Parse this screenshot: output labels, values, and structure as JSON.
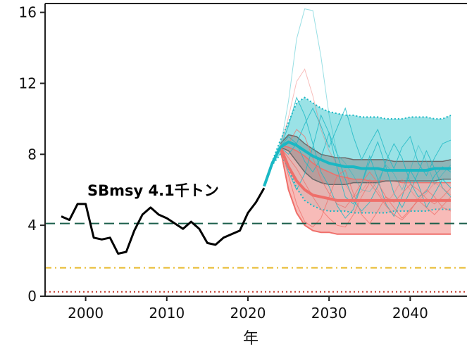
{
  "chart_data": {
    "type": "line",
    "title": "",
    "xlabel": "年",
    "ylabel": "",
    "xlim": [
      1995,
      2047
    ],
    "ylim": [
      0,
      16.5
    ],
    "x_ticks": [
      2000,
      2010,
      2020,
      2030,
      2040
    ],
    "y_ticks": [
      0,
      4,
      8,
      12,
      16
    ],
    "grid": false,
    "annotation": "SBmsy 4.1千トン",
    "colors": {
      "observed": "#000000",
      "teal": "#1ab8c4",
      "teal_fill": "#8fdfe3",
      "salmon": "#ef6f6a",
      "salmon_fill": "#f6aaa6",
      "gray": "#808080",
      "sbmsy_line": "#1a5e4a",
      "limit_line": "#e8b92c",
      "ban_line": "#c43a2b"
    },
    "observed": {
      "x": [
        1997,
        1998,
        1999,
        2000,
        2001,
        2002,
        2003,
        2004,
        2005,
        2006,
        2007,
        2008,
        2009,
        2010,
        2011,
        2012,
        2013,
        2014,
        2015,
        2016,
        2017,
        2018,
        2019,
        2020,
        2021,
        2022
      ],
      "y": [
        4.5,
        4.3,
        5.2,
        5.2,
        3.3,
        3.2,
        3.3,
        2.4,
        2.5,
        3.7,
        4.6,
        5.0,
        4.6,
        4.4,
        4.1,
        3.8,
        4.2,
        3.8,
        3.0,
        2.9,
        3.3,
        3.5,
        3.7,
        4.7,
        5.3,
        6.1
      ]
    },
    "reference_lines": [
      {
        "value": 4.1,
        "style": "dashed",
        "color": "#1a5e4a"
      },
      {
        "value": 1.6,
        "style": "dashdot",
        "color": "#e8b92c"
      },
      {
        "value": 0.25,
        "style": "dotted",
        "color": "#c43a2b"
      }
    ],
    "projection_teal": {
      "x": [
        2022,
        2023,
        2024,
        2025,
        2026,
        2027,
        2028,
        2029,
        2030,
        2031,
        2032,
        2033,
        2034,
        2035,
        2036,
        2037,
        2038,
        2039,
        2040,
        2041,
        2042,
        2043,
        2044,
        2045
      ],
      "median": [
        6.2,
        7.5,
        8.4,
        8.7,
        8.5,
        8.2,
        7.9,
        7.7,
        7.5,
        7.4,
        7.3,
        7.3,
        7.2,
        7.2,
        7.2,
        7.1,
        7.1,
        7.1,
        7.1,
        7.1,
        7.1,
        7.2,
        7.2,
        7.2
      ],
      "upper": [
        6.2,
        7.6,
        8.8,
        9.8,
        10.9,
        11.2,
        10.9,
        10.6,
        10.4,
        10.3,
        10.2,
        10.2,
        10.1,
        10.1,
        10.1,
        10.0,
        10.0,
        10.0,
        10.1,
        10.1,
        10.1,
        10.0,
        10.0,
        10.2
      ],
      "lower": [
        6.2,
        7.4,
        8.0,
        7.2,
        6.1,
        5.4,
        5.1,
        4.9,
        4.8,
        4.8,
        4.8,
        4.7,
        4.7,
        4.7,
        4.7,
        4.7,
        4.8,
        4.8,
        4.8,
        4.8,
        4.8,
        4.9,
        4.9,
        4.9
      ]
    },
    "projection_salmon": {
      "x": [
        2024,
        2025,
        2026,
        2027,
        2028,
        2029,
        2030,
        2031,
        2032,
        2033,
        2034,
        2035,
        2036,
        2037,
        2038,
        2039,
        2040,
        2041,
        2042,
        2043,
        2044,
        2045
      ],
      "median": [
        8.4,
        7.3,
        6.5,
        6.0,
        5.7,
        5.6,
        5.5,
        5.4,
        5.4,
        5.4,
        5.4,
        5.4,
        5.4,
        5.4,
        5.4,
        5.4,
        5.4,
        5.4,
        5.4,
        5.4,
        5.4,
        5.4
      ],
      "upper": [
        8.5,
        8.4,
        8.2,
        7.9,
        7.5,
        7.2,
        7.0,
        6.8,
        6.7,
        6.6,
        6.6,
        6.5,
        6.5,
        6.5,
        6.5,
        6.4,
        6.4,
        6.4,
        6.4,
        6.4,
        6.4,
        6.4
      ],
      "lower": [
        8.3,
        6.0,
        4.7,
        4.0,
        3.7,
        3.6,
        3.6,
        3.5,
        3.5,
        3.5,
        3.5,
        3.5,
        3.5,
        3.5,
        3.5,
        3.5,
        3.5,
        3.5,
        3.5,
        3.5,
        3.5,
        3.5
      ]
    },
    "projection_gray": {
      "x": [
        2024,
        2025,
        2026,
        2027,
        2028,
        2029,
        2030,
        2031,
        2032,
        2033,
        2034,
        2035,
        2036,
        2037,
        2038,
        2039,
        2040,
        2041,
        2042,
        2043,
        2044,
        2045
      ],
      "upper": [
        8.6,
        9.1,
        9.0,
        8.6,
        8.3,
        8.0,
        7.9,
        7.8,
        7.8,
        7.7,
        7.7,
        7.7,
        7.7,
        7.7,
        7.6,
        7.6,
        7.6,
        7.6,
        7.6,
        7.6,
        7.6,
        7.7
      ],
      "lower": [
        8.4,
        8.2,
        7.6,
        7.0,
        6.6,
        6.4,
        6.3,
        6.3,
        6.3,
        6.4,
        6.4,
        6.4,
        6.4,
        6.5,
        6.5,
        6.5,
        6.5,
        6.5,
        6.5,
        6.5,
        6.6,
        6.6
      ]
    },
    "sample_runs_teal": [
      {
        "x": [
          2024,
          2025,
          2026,
          2027,
          2028,
          2029,
          2030,
          2031,
          2032,
          2033,
          2034,
          2035,
          2036,
          2037,
          2038,
          2039,
          2040,
          2041,
          2042,
          2043,
          2044,
          2045
        ],
        "y": [
          8.4,
          11.0,
          14.5,
          16.2,
          16.1,
          13.5,
          10.2,
          8.0,
          7.5,
          6.8,
          6.0,
          5.9,
          6.5,
          7.4,
          6.9,
          6.0,
          7.1,
          8.5,
          7.6,
          6.3,
          6.9,
          7.4
        ]
      },
      {
        "x": [
          2024,
          2025,
          2026,
          2027,
          2028,
          2029,
          2030,
          2031,
          2032,
          2033,
          2034,
          2035,
          2036,
          2037,
          2038,
          2039,
          2040,
          2041,
          2042,
          2043,
          2044,
          2045
        ],
        "y": [
          8.4,
          9.6,
          11.2,
          10.2,
          8.6,
          7.0,
          6.2,
          5.1,
          4.4,
          4.9,
          6.3,
          7.9,
          6.6,
          5.2,
          4.5,
          5.6,
          7.1,
          6.3,
          5.0,
          5.8,
          6.6,
          6.1
        ]
      },
      {
        "x": [
          2024,
          2025,
          2026,
          2027,
          2028,
          2029,
          2030,
          2031,
          2032,
          2033,
          2034,
          2035,
          2036,
          2037,
          2038,
          2039,
          2040,
          2041,
          2042,
          2043,
          2044,
          2045
        ],
        "y": [
          8.4,
          8.0,
          8.6,
          9.7,
          10.6,
          9.6,
          8.4,
          9.5,
          10.6,
          9.0,
          7.7,
          8.6,
          9.4,
          8.1,
          7.2,
          8.4,
          9.0,
          7.5,
          6.8,
          7.8,
          8.6,
          8.8
        ]
      },
      {
        "x": [
          2024,
          2025,
          2026,
          2027,
          2028,
          2029,
          2030,
          2031,
          2032,
          2033,
          2034,
          2035,
          2036,
          2037,
          2038,
          2039,
          2040,
          2041,
          2042,
          2043,
          2044,
          2045
        ],
        "y": [
          8.4,
          7.0,
          6.0,
          6.9,
          8.4,
          10.2,
          9.2,
          7.2,
          5.6,
          5.2,
          6.3,
          7.6,
          8.7,
          7.3,
          5.8,
          5.0,
          5.9,
          7.0,
          8.2,
          7.2,
          6.1,
          5.6
        ]
      },
      {
        "x": [
          2024,
          2025,
          2026,
          2027,
          2028,
          2029,
          2030,
          2031,
          2032,
          2033,
          2034,
          2035,
          2036,
          2037,
          2038,
          2039,
          2040,
          2041,
          2042,
          2043,
          2044,
          2045
        ],
        "y": [
          8.4,
          9.0,
          8.6,
          7.6,
          7.0,
          7.8,
          9.2,
          8.0,
          6.6,
          5.4,
          4.8,
          5.3,
          6.2,
          7.6,
          8.6,
          7.8,
          6.4,
          5.6,
          5.9,
          6.8,
          7.3,
          7.0
        ]
      }
    ],
    "sample_runs_salmon": [
      {
        "x": [
          2024,
          2025,
          2026,
          2027,
          2028,
          2029,
          2030,
          2031,
          2032,
          2033,
          2034,
          2035,
          2036,
          2037,
          2038,
          2039,
          2040,
          2041,
          2042,
          2043,
          2044,
          2045
        ],
        "y": [
          8.4,
          10.1,
          12.1,
          12.8,
          11.3,
          9.4,
          8.2,
          7.4,
          6.3,
          5.6,
          5.9,
          6.6,
          6.0,
          5.2,
          5.8,
          6.6,
          6.0,
          5.4,
          5.8,
          6.4,
          6.1,
          5.7
        ]
      },
      {
        "x": [
          2024,
          2025,
          2026,
          2027,
          2028,
          2029,
          2030,
          2031,
          2032,
          2033,
          2034,
          2035,
          2036,
          2037,
          2038,
          2039,
          2040,
          2041,
          2042,
          2043,
          2044,
          2045
        ],
        "y": [
          8.4,
          6.8,
          5.2,
          4.2,
          3.9,
          4.4,
          5.6,
          6.8,
          7.1,
          5.8,
          4.6,
          4.1,
          4.8,
          5.6,
          5.0,
          4.4,
          4.9,
          5.4,
          5.0,
          4.6,
          5.1,
          5.6
        ]
      },
      {
        "x": [
          2024,
          2025,
          2026,
          2027,
          2028,
          2029,
          2030,
          2031,
          2032,
          2033,
          2034,
          2035,
          2036,
          2037,
          2038,
          2039,
          2040,
          2041,
          2042,
          2043,
          2044,
          2045
        ],
        "y": [
          8.4,
          7.8,
          7.2,
          6.4,
          5.6,
          4.9,
          4.4,
          4.0,
          3.9,
          4.6,
          5.6,
          6.4,
          5.8,
          5.1,
          4.6,
          4.3,
          4.8,
          5.5,
          6.0,
          5.6,
          5.0,
          4.8
        ]
      },
      {
        "x": [
          2024,
          2025,
          2026,
          2027,
          2028,
          2029,
          2030,
          2031,
          2032,
          2033,
          2034,
          2035,
          2036,
          2037,
          2038,
          2039,
          2040,
          2041,
          2042,
          2043,
          2044,
          2045
        ],
        "y": [
          8.4,
          8.6,
          9.4,
          9.0,
          7.8,
          6.6,
          5.8,
          5.2,
          5.0,
          5.6,
          6.4,
          7.0,
          6.4,
          5.6,
          5.3,
          5.8,
          6.3,
          6.0,
          5.5,
          5.2,
          5.6,
          6.1
        ]
      }
    ]
  }
}
